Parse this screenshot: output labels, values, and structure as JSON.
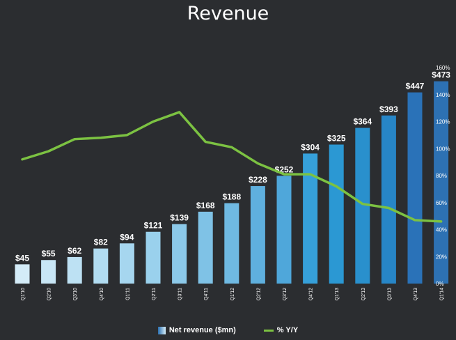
{
  "chart_data": {
    "type": "bar",
    "title": "Revenue",
    "categories": [
      "Q1'10",
      "Q2'10",
      "Q3'10",
      "Q4'10",
      "Q1'11",
      "Q2'11",
      "Q3'11",
      "Q4'11",
      "Q1'12",
      "Q2'12",
      "Q3'12",
      "Q4'12",
      "Q1'13",
      "Q2'13",
      "Q3'13",
      "Q4'13",
      "Q1'14"
    ],
    "series": [
      {
        "name": "Net revenue ($mn)",
        "type": "bar",
        "axis": "left",
        "values": [
          45,
          55,
          62,
          82,
          94,
          121,
          139,
          168,
          188,
          228,
          252,
          304,
          325,
          364,
          393,
          447,
          473
        ],
        "labels": [
          "$45",
          "$55",
          "$62",
          "$82",
          "$94",
          "$121",
          "$139",
          "$168",
          "$188",
          "$228",
          "$252",
          "$304",
          "$325",
          "$364",
          "$393",
          "$447",
          "$473"
        ],
        "colors": [
          "#d4ecf8",
          "#c8e6f5",
          "#bde1f3",
          "#b1dcf1",
          "#a6d6ef",
          "#9ad1ed",
          "#8cc9e9",
          "#7fc2e6",
          "#6fb9e2",
          "#5fb0de",
          "#4fa7da",
          "#36a0da",
          "#2b98d3",
          "#2990cd",
          "#2786c7",
          "#2a72b8",
          "#2d71b3"
        ]
      },
      {
        "name": "% Y/Y",
        "type": "line",
        "axis": "right",
        "color": "#7cc242",
        "values": [
          92,
          98,
          107,
          108,
          110,
          120,
          127,
          105,
          101,
          89,
          81,
          81,
          72,
          59,
          56,
          47,
          46
        ]
      }
    ],
    "y_right": {
      "ticks": [
        "0%",
        "20%",
        "40%",
        "60%",
        "80%",
        "100%",
        "120%",
        "140%",
        "160%"
      ],
      "range": [
        0,
        160
      ]
    },
    "y_left_range": [
      0,
      505
    ],
    "legend": [
      "Net revenue ($mn)",
      "% Y/Y"
    ],
    "legend_position": "bottom"
  }
}
